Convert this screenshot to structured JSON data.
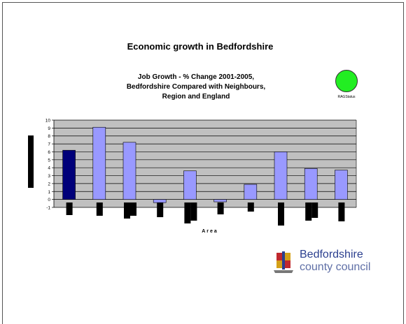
{
  "slide": {
    "title": "Economic growth in Bedfordshire",
    "rag_label": "RAGStatus",
    "rag_color": "#22ee22"
  },
  "logo": {
    "line1": "Bedfordshire",
    "line2": "county council"
  },
  "chart_data": {
    "type": "bar",
    "title": "Job Growth - % Change 2001-2005,\nBedfordshire Compared with Neighbours,\nRegion and England",
    "xlabel": "Area",
    "ylabel": "",
    "ylim": [
      -1,
      10
    ],
    "yticks": [
      -1,
      0,
      1,
      2,
      3,
      4,
      5,
      6,
      7,
      8,
      9,
      10
    ],
    "grid": true,
    "colors": {
      "highlight": "#00007a",
      "bars": "#9999ff",
      "plot_bg": "#c0c0c0"
    },
    "values": [
      6.2,
      9.1,
      7.2,
      -0.4,
      3.6,
      -0.3,
      1.9,
      6.0,
      3.9,
      3.7
    ]
  }
}
